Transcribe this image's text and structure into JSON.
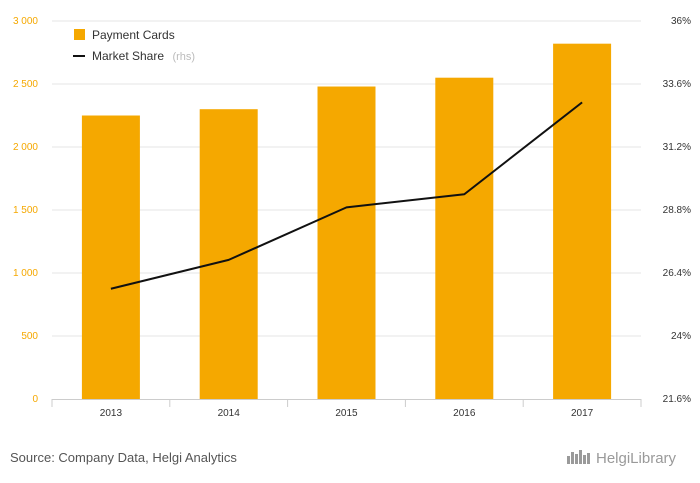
{
  "chart_data": {
    "type": "bar",
    "categories": [
      "2013",
      "2014",
      "2015",
      "2016",
      "2017"
    ],
    "series": [
      {
        "name": "Payment Cards",
        "type": "bar",
        "axis": "left",
        "color": "#f5a800",
        "values": [
          2250,
          2300,
          2480,
          2550,
          2820
        ]
      },
      {
        "name": "Market Share",
        "legend_suffix": "(rhs)",
        "type": "line",
        "axis": "right",
        "color": "#111111",
        "values": [
          25.8,
          26.9,
          28.9,
          29.4,
          32.9
        ]
      }
    ],
    "y_left": {
      "ticks": [
        "0",
        "500",
        "1 000",
        "1 500",
        "2 000",
        "2 500",
        "3 000"
      ],
      "range": [
        0,
        3000
      ]
    },
    "y_right": {
      "ticks": [
        "21.6%",
        "24%",
        "26.4%",
        "28.8%",
        "31.2%",
        "33.6%",
        "36%"
      ],
      "range": [
        21.6,
        36
      ]
    },
    "grid": true,
    "legend_position": "top-left"
  },
  "footer": {
    "source": "Source: Company Data, Helgi Analytics",
    "logo": "HelgiLibrary",
    "logo_icon": "helgi-logo-icon"
  }
}
